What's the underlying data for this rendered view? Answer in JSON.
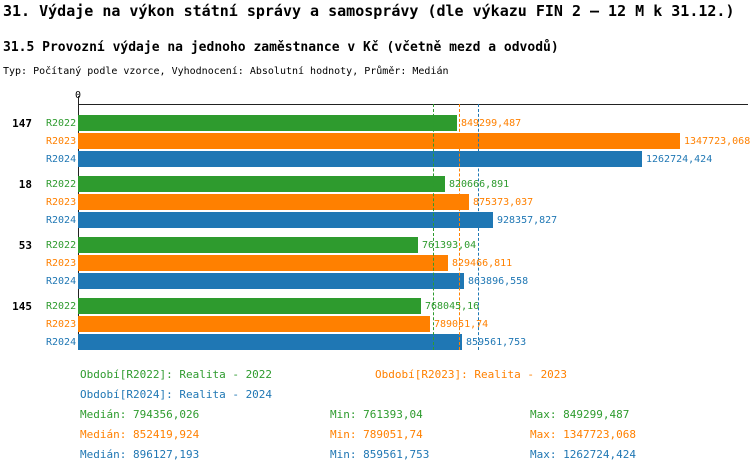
{
  "header": {
    "title_line1": "31. Výdaje na výkon státní správy a samosprávy (dle výkazu FIN 2 – 12 M k 31.12.)",
    "title_line2": "31.5 Provozní výdaje na jednoho zaměstnance v Kč (včetně mezd a odvodů)",
    "meta_line": "Typ: Počítaný podle vzorce, Vyhodnocení: Absolutní hodnoty, Průměr: Medián"
  },
  "chart_data": {
    "type": "bar",
    "orientation": "horizontal",
    "x_origin_label": "0",
    "xlim": [
      0,
      1500000
    ],
    "grid": false,
    "groups": [
      "147",
      "18",
      "53",
      "145"
    ],
    "series": [
      {
        "name": "R2022",
        "color": "#2E9B2E",
        "values": [
          849299.487,
          820666.891,
          761393.04,
          768045.16
        ],
        "value_labels": [
          "849299,487",
          "820666,891",
          "761393,04",
          "768045,16"
        ],
        "label_colors": [
          "#FF8000",
          null,
          null,
          null
        ],
        "median": 794356.026,
        "min": 761393.04,
        "max": 849299.487
      },
      {
        "name": "R2023",
        "color": "#FF8000",
        "values": [
          1347723.068,
          875373.037,
          829466.811,
          789051.74
        ],
        "value_labels": [
          "1347723,068",
          "875373,037",
          "829466,811",
          "789051,74"
        ],
        "label_colors": [
          null,
          null,
          null,
          null
        ],
        "median": 852419.924,
        "min": 789051.74,
        "max": 1347723.068
      },
      {
        "name": "R2024",
        "color": "#1F77B4",
        "values": [
          1262724.424,
          928357.827,
          863896.558,
          859561.753
        ],
        "value_labels": [
          "1262724,424",
          "928357,827",
          "863896,558",
          "859561,753"
        ],
        "label_colors": [
          null,
          null,
          null,
          null
        ],
        "median": 896127.193,
        "min": 859561.753,
        "max": 1262724.424
      }
    ],
    "median_lines": [
      {
        "series": "R2022",
        "value": 794356.026,
        "color": "#2E9B2E"
      },
      {
        "series": "R2023",
        "value": 852419.924,
        "color": "#FF8000"
      },
      {
        "series": "R2024",
        "value": 896127.193,
        "color": "#1F77B4"
      }
    ]
  },
  "legend": {
    "row1_left": "Období[R2022]: Realita - 2022",
    "row1_right": "Období[R2023]: Realita - 2023",
    "row2_left": "Období[R2024]: Realita - 2024"
  },
  "stats": [
    {
      "median": "Medián: 794356,026",
      "min": "Min: 761393,04",
      "max": "Max: 849299,487",
      "color": "#2E9B2E"
    },
    {
      "median": "Medián: 852419,924",
      "min": "Min: 789051,74",
      "max": "Max: 1347723,068",
      "color": "#FF8000"
    },
    {
      "median": "Medián: 896127,193",
      "min": "Min: 859561,753",
      "max": "Max: 1262724,424",
      "color": "#1F77B4"
    }
  ]
}
